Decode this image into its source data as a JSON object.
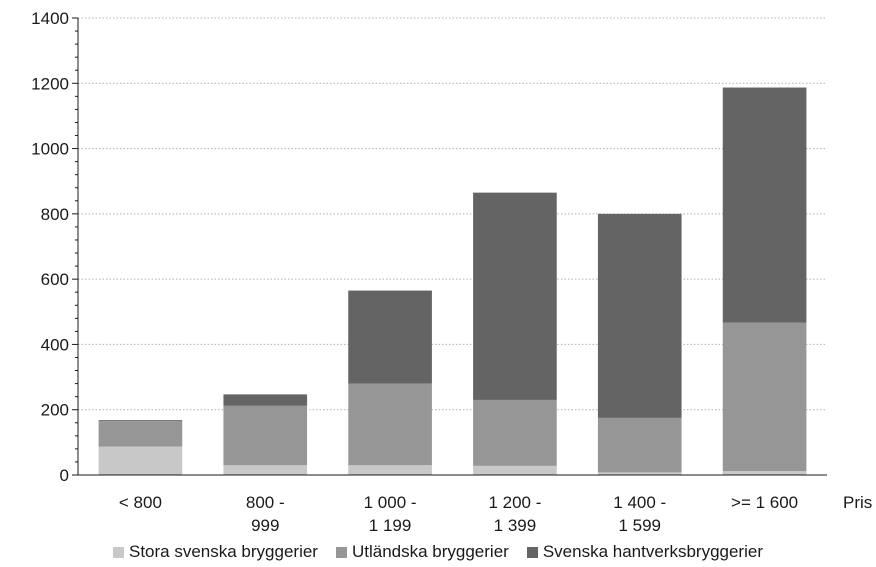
{
  "chart_data": {
    "type": "bar",
    "stacked": true,
    "title": "",
    "xlabel": "Pris",
    "ylabel": "",
    "ylim": [
      0,
      1400
    ],
    "yticks": [
      "0",
      "200",
      "400",
      "600",
      "800",
      "1000",
      "1200",
      "1400"
    ],
    "grid": "horizontal dotted",
    "legend_position": "bottom",
    "categories": [
      [
        "< 800"
      ],
      [
        "800 -",
        "999"
      ],
      [
        "1 000 -",
        "1 199"
      ],
      [
        "1 200 -",
        "1 399"
      ],
      [
        "1 400 -",
        "1 599"
      ],
      [
        ">= 1 600"
      ]
    ],
    "series": [
      {
        "name": "Stora svenska bryggerier",
        "color": "#c8c8c8",
        "values": [
          87,
          30,
          30,
          28,
          8,
          12
        ]
      },
      {
        "name": "Utländska bryggerier",
        "color": "#969696",
        "values": [
          78,
          182,
          250,
          202,
          167,
          455
        ]
      },
      {
        "name": "Svenska hantverksbryggerier",
        "color": "#646464",
        "values": [
          3,
          35,
          285,
          635,
          625,
          720
        ]
      }
    ]
  }
}
